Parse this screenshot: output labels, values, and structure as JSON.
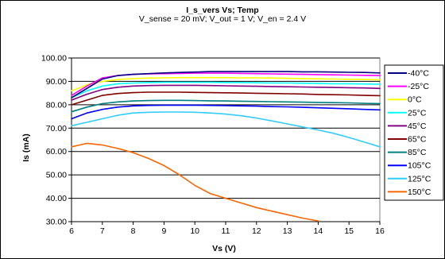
{
  "chart_data": {
    "type": "line",
    "title": "I_s_vers Vs; Temp",
    "subtitle": "V_sense = 20 mV; V_out = 1 V; V_en = 2.4 V",
    "xlabel": "Vs (V)",
    "ylabel": "Is (mA)",
    "xlim": [
      6,
      16
    ],
    "ylim": [
      30,
      100
    ],
    "x_ticks": [
      "6",
      "7",
      "8",
      "9",
      "10",
      "11",
      "12",
      "13",
      "14",
      "15",
      "16"
    ],
    "y_ticks": [
      "30.00",
      "40.00",
      "50.00",
      "60.00",
      "70.00",
      "80.00",
      "90.00",
      "100.00"
    ],
    "grid": "horizontal",
    "legend_position": "right",
    "x": [
      6,
      6.5,
      7,
      7.5,
      8,
      8.5,
      9,
      9.5,
      10,
      10.5,
      11,
      11.5,
      12,
      12.5,
      13,
      13.5,
      14,
      14.5,
      15,
      15.5,
      16
    ],
    "series": [
      {
        "name": "-40°C",
        "color": "#000080",
        "values": [
          83,
          87,
          91,
          92.5,
          93,
          93.3,
          93.6,
          93.8,
          94,
          94.2,
          94.2,
          94.2,
          94.2,
          94.2,
          94.2,
          94.1,
          94.1,
          94,
          93.9,
          93.8,
          93.6
        ]
      },
      {
        "name": "-25°C",
        "color": "#ff00ff",
        "values": [
          84,
          88,
          91.5,
          92.5,
          93,
          93.2,
          93.3,
          93.4,
          93.5,
          93.5,
          93.5,
          93.4,
          93.3,
          93.2,
          93.1,
          93,
          92.9,
          92.8,
          92.7,
          92.6,
          92.5
        ]
      },
      {
        "name": "0°C",
        "color": "#ffff00",
        "values": [
          86,
          88.5,
          90,
          90.8,
          91.2,
          91.4,
          91.5,
          91.6,
          91.6,
          91.6,
          91.6,
          91.5,
          91.5,
          91.4,
          91.3,
          91.2,
          91.1,
          91,
          90.9,
          90.8,
          90.7
        ]
      },
      {
        "name": "25°C",
        "color": "#00ffff",
        "values": [
          83,
          86,
          88,
          89,
          89.3,
          89.5,
          89.6,
          89.6,
          89.6,
          89.6,
          89.5,
          89.5,
          89.4,
          89.3,
          89.3,
          89.2,
          89.1,
          89,
          89,
          88.9,
          88.8
        ]
      },
      {
        "name": "45°C",
        "color": "#800080",
        "values": [
          82,
          84.5,
          86.5,
          87.5,
          88,
          88.2,
          88.3,
          88.3,
          88.3,
          88.2,
          88.1,
          88,
          87.9,
          87.8,
          87.7,
          87.6,
          87.5,
          87.4,
          87.3,
          87.2,
          87
        ]
      },
      {
        "name": "65°C",
        "color": "#800000",
        "values": [
          80,
          82,
          84,
          84.8,
          85.2,
          85.4,
          85.4,
          85.4,
          85.3,
          85.2,
          85.1,
          85,
          84.9,
          84.8,
          84.7,
          84.6,
          84.4,
          84.3,
          84.2,
          84,
          83.9
        ]
      },
      {
        "name": "85°C",
        "color": "#008080",
        "values": [
          77,
          79,
          80.5,
          81.2,
          81.6,
          81.8,
          81.9,
          81.9,
          81.8,
          81.7,
          81.6,
          81.5,
          81.4,
          81.3,
          81.2,
          81.1,
          81,
          80.9,
          80.8,
          80.6,
          80.5
        ]
      },
      {
        "name": "105°C",
        "color": "#0000ff",
        "values": [
          74,
          76.5,
          78,
          79,
          79.5,
          79.7,
          79.8,
          79.8,
          79.8,
          79.7,
          79.6,
          79.5,
          79.4,
          79.2,
          79.1,
          78.9,
          78.7,
          78.5,
          78.3,
          78,
          77.8
        ]
      },
      {
        "name": "125°C",
        "color": "#33ccff",
        "values": [
          71,
          72.5,
          74,
          75.5,
          76.5,
          76.8,
          76.9,
          76.9,
          76.8,
          76.5,
          76,
          75.3,
          74.3,
          73.1,
          71.8,
          70.5,
          69.2,
          67.8,
          66,
          64,
          62
        ]
      },
      {
        "name": "150°C",
        "color": "#ff6600",
        "values": [
          62,
          63.5,
          62.8,
          61.3,
          59.5,
          57,
          54,
          50,
          45.5,
          42,
          40,
          38,
          36,
          34.5,
          33,
          31.5,
          30.3,
          null,
          null,
          null,
          null
        ]
      }
    ]
  }
}
